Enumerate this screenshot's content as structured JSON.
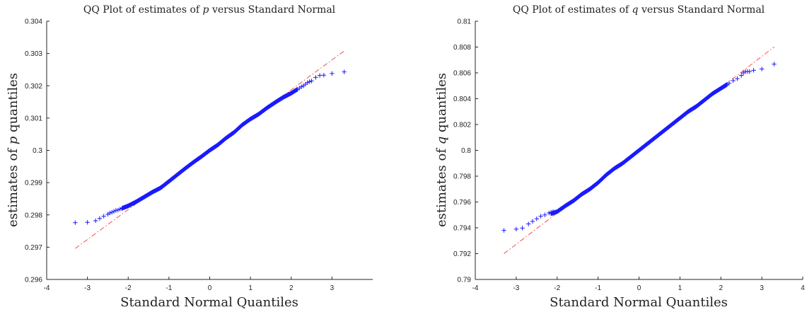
{
  "chart_data": [
    {
      "type": "scatter",
      "title_prefix": "QQ Plot of estimates of ",
      "title_var": "p",
      "title_suffix": " versus Standard Normal",
      "xlabel": "Standard Normal Quantiles",
      "ylabel_prefix": "estimates of ",
      "ylabel_var": "p",
      "ylabel_suffix": " quantiles",
      "xlim": [
        -4,
        4
      ],
      "ylim": [
        0.296,
        0.304
      ],
      "xticks": [
        -4,
        -3,
        -2,
        -1,
        0,
        1,
        2,
        3
      ],
      "xtick_labels": [
        "-4",
        "-3",
        "-2",
        "-1",
        "0",
        "1",
        "2",
        "3"
      ],
      "yticks": [
        0.296,
        0.297,
        0.298,
        0.299,
        0.3,
        0.301,
        0.302,
        0.303,
        0.304
      ],
      "ytick_labels": [
        "0.296",
        "0.297",
        "0.298",
        "0.299",
        "0.3",
        "0.301",
        "0.302",
        "0.303",
        "0.304"
      ],
      "grid": false,
      "marker_color": "#1a1aff",
      "line_color": "#ff3333",
      "reference_line": {
        "x": [
          -3.3,
          3.3
        ],
        "y": [
          0.29696,
          0.30308
        ]
      },
      "quantile_curve": {
        "x": [
          -3.3,
          -3.0,
          -2.8,
          -2.6,
          -2.4,
          -2.2,
          -2.0,
          -1.8,
          -1.6,
          -1.4,
          -1.2,
          -1.0,
          -0.8,
          -0.6,
          -0.4,
          -0.2,
          0.0,
          0.2,
          0.4,
          0.6,
          0.8,
          1.0,
          1.2,
          1.4,
          1.6,
          1.8,
          2.0,
          2.2,
          2.4,
          2.6,
          2.8,
          3.0,
          3.3
        ],
        "y": [
          0.29776,
          0.29777,
          0.29784,
          0.29795,
          0.29808,
          0.29818,
          0.29828,
          0.29841,
          0.29856,
          0.29871,
          0.29884,
          0.29904,
          0.29924,
          0.29944,
          0.29963,
          0.29981,
          0.3,
          0.30017,
          0.30038,
          0.30056,
          0.30079,
          0.30097,
          0.30112,
          0.30131,
          0.30148,
          0.30164,
          0.30177,
          0.30193,
          0.3021,
          0.30226,
          0.30232,
          0.30238,
          0.30243
        ]
      },
      "tail_points": {
        "x": [
          -3.3,
          -3.0,
          -2.8,
          -2.7,
          -2.6,
          -2.5,
          -2.45,
          -2.4,
          -2.35,
          -2.3,
          -2.25,
          -2.2,
          -2.15,
          2.15,
          2.2,
          2.25,
          2.3,
          2.35,
          2.4,
          2.45,
          2.5,
          2.6,
          2.7,
          2.8,
          3.0,
          3.3
        ],
        "y": [
          0.29776,
          0.29777,
          0.29782,
          0.29789,
          0.29796,
          0.29802,
          0.29806,
          0.29808,
          0.29811,
          0.29814,
          0.29815,
          0.29818,
          0.2982,
          0.30188,
          0.30193,
          0.30197,
          0.302,
          0.30205,
          0.3021,
          0.30213,
          0.30215,
          0.30226,
          0.30232,
          0.30233,
          0.30238,
          0.30243
        ]
      }
    },
    {
      "type": "scatter",
      "title_prefix": "QQ Plot of estimates of ",
      "title_var": "q",
      "title_suffix": " versus Standard Normal",
      "xlabel": "Standard Normal Quantiles",
      "ylabel_prefix": "estimates of ",
      "ylabel_var": "q",
      "ylabel_suffix": " quantiles",
      "xlim": [
        -4,
        4
      ],
      "ylim": [
        0.79,
        0.81
      ],
      "xticks": [
        -4,
        -3,
        -2,
        -1,
        0,
        1,
        2,
        3,
        4
      ],
      "xtick_labels": [
        "-4",
        "-3",
        "-2",
        "-1",
        "0",
        "1",
        "2",
        "3",
        "4"
      ],
      "yticks": [
        0.79,
        0.792,
        0.794,
        0.796,
        0.798,
        0.8,
        0.802,
        0.804,
        0.806,
        0.808,
        0.81
      ],
      "ytick_labels": [
        "0.79",
        "0.792",
        "0.794",
        "0.796",
        "0.798",
        "0.8",
        "0.802",
        "0.804",
        "0.806",
        "0.808",
        "0.81"
      ],
      "grid": false,
      "marker_color": "#1a1aff",
      "line_color": "#ff3333",
      "reference_line": {
        "x": [
          -3.3,
          3.3
        ],
        "y": [
          0.792,
          0.808
        ]
      },
      "quantile_curve": {
        "x": [
          -3.3,
          -3.0,
          -2.8,
          -2.6,
          -2.4,
          -2.2,
          -2.0,
          -1.8,
          -1.6,
          -1.4,
          -1.2,
          -1.0,
          -0.8,
          -0.6,
          -0.4,
          -0.2,
          0.0,
          0.2,
          0.4,
          0.6,
          0.8,
          1.0,
          1.2,
          1.4,
          1.6,
          1.8,
          2.0,
          2.2,
          2.4,
          2.6,
          2.8,
          3.0,
          3.3
        ],
        "y": [
          0.7938,
          0.7939,
          0.79405,
          0.7944,
          0.7947,
          0.79505,
          0.79525,
          0.7957,
          0.7961,
          0.7966,
          0.797,
          0.7975,
          0.7981,
          0.7986,
          0.799,
          0.7995,
          0.8,
          0.8005,
          0.801,
          0.8015,
          0.802,
          0.8025,
          0.803,
          0.8034,
          0.8039,
          0.8044,
          0.8048,
          0.8052,
          0.80565,
          0.806,
          0.8062,
          0.8063,
          0.80668
        ]
      },
      "tail_points": {
        "x": [
          -3.3,
          -3.0,
          -2.85,
          -2.7,
          -2.6,
          -2.5,
          -2.4,
          -2.3,
          -2.2,
          -2.15,
          -2.1,
          2.1,
          2.15,
          2.2,
          2.3,
          2.4,
          2.5,
          2.55,
          2.6,
          2.65,
          2.7,
          2.8,
          3.0,
          3.3
        ],
        "y": [
          0.7938,
          0.7939,
          0.79398,
          0.7943,
          0.7945,
          0.7947,
          0.7949,
          0.795,
          0.79515,
          0.7952,
          0.79525,
          0.805,
          0.8051,
          0.8052,
          0.8054,
          0.80555,
          0.8058,
          0.806,
          0.8061,
          0.8061,
          0.8061,
          0.8062,
          0.8063,
          0.80668
        ]
      }
    }
  ]
}
